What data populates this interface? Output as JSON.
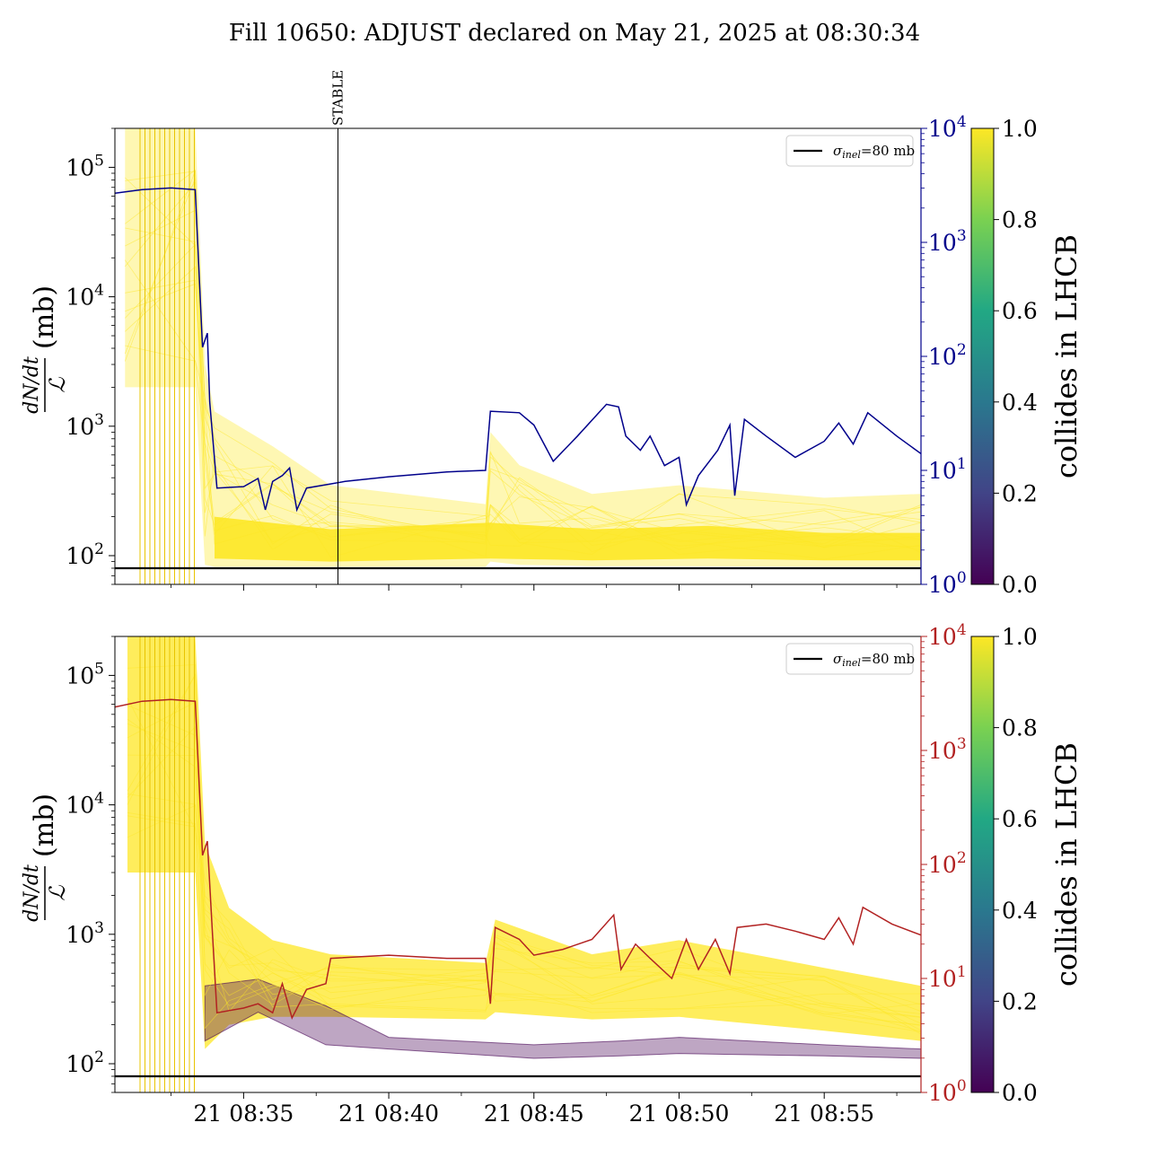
{
  "title": "Fill 10650: ADJUST declared on May 21, 2025 at 08:30:34",
  "colors": {
    "top_right_axis": "#00008b",
    "bottom_right_axis": "#b22222",
    "reference_line": "#000000",
    "high_value_fill": "#fde725",
    "low_value_line": "#440154"
  },
  "chart_data": [
    {
      "type": "line",
      "panel": "top",
      "ylabel": "dN/dt / ℒ (mb)",
      "yscale": "log",
      "ylim": [
        60,
        200000
      ],
      "yticks": [
        {
          "value": 100,
          "label": "10",
          "exp": "2"
        },
        {
          "value": 1000,
          "label": "10",
          "exp": "3"
        },
        {
          "value": 10000,
          "label": "10",
          "exp": "4"
        },
        {
          "value": 100000,
          "label": "10",
          "exp": "5"
        }
      ],
      "xlim": [
        "08:30:34",
        "08:58:20"
      ],
      "xtick_labels_visible": false,
      "marker": {
        "label": "STABLE",
        "x": "08:38:15"
      },
      "legend": {
        "position": "upper-right",
        "entry": "σinel=80 mb",
        "entry_text": "σ",
        "entry_sub": "inel",
        "entry_rest": "=80 mb"
      },
      "reference_line": {
        "value": 80
      },
      "right_axis": {
        "color": "#00008b",
        "scale": "log",
        "ylim": [
          1,
          10000
        ],
        "ticks": [
          {
            "value": 1,
            "label": "10",
            "exp": "0"
          },
          {
            "value": 10,
            "label": "10",
            "exp": "1"
          },
          {
            "value": 100,
            "label": "10",
            "exp": "2"
          },
          {
            "value": 1000,
            "label": "10",
            "exp": "3"
          },
          {
            "value": 10000,
            "label": "10",
            "exp": "4"
          }
        ],
        "series": [
          {
            "x": "08:30:34",
            "y": 2700
          },
          {
            "x": "08:31:30",
            "y": 2900
          },
          {
            "x": "08:32:30",
            "y": 3000
          },
          {
            "x": "08:33:20",
            "y": 2900
          },
          {
            "x": "08:33:35",
            "y": 120
          },
          {
            "x": "08:33:45",
            "y": 160
          },
          {
            "x": "08:33:50",
            "y": 40
          },
          {
            "x": "08:34:05",
            "y": 7
          },
          {
            "x": "08:35:00",
            "y": 7.2
          },
          {
            "x": "08:35:30",
            "y": 8.5
          },
          {
            "x": "08:35:45",
            "y": 4.5
          },
          {
            "x": "08:36:00",
            "y": 8
          },
          {
            "x": "08:36:20",
            "y": 9
          },
          {
            "x": "08:36:35",
            "y": 10.5
          },
          {
            "x": "08:36:50",
            "y": 4.5
          },
          {
            "x": "08:37:10",
            "y": 7
          },
          {
            "x": "08:38:30",
            "y": 8
          },
          {
            "x": "08:40:00",
            "y": 8.8
          },
          {
            "x": "08:42:00",
            "y": 9.7
          },
          {
            "x": "08:43:20",
            "y": 10
          },
          {
            "x": "08:43:30",
            "y": 33
          },
          {
            "x": "08:44:30",
            "y": 32
          },
          {
            "x": "08:45:00",
            "y": 25
          },
          {
            "x": "08:45:40",
            "y": 12
          },
          {
            "x": "08:46:30",
            "y": 20
          },
          {
            "x": "08:47:30",
            "y": 38
          },
          {
            "x": "08:47:55",
            "y": 36
          },
          {
            "x": "08:48:10",
            "y": 20
          },
          {
            "x": "08:48:40",
            "y": 15
          },
          {
            "x": "08:49:00",
            "y": 20
          },
          {
            "x": "08:49:30",
            "y": 11
          },
          {
            "x": "08:50:00",
            "y": 13
          },
          {
            "x": "08:50:15",
            "y": 5
          },
          {
            "x": "08:50:40",
            "y": 9
          },
          {
            "x": "08:51:20",
            "y": 15
          },
          {
            "x": "08:51:45",
            "y": 25
          },
          {
            "x": "08:51:55",
            "y": 6
          },
          {
            "x": "08:52:15",
            "y": 28
          },
          {
            "x": "08:53:00",
            "y": 20
          },
          {
            "x": "08:54:00",
            "y": 13
          },
          {
            "x": "08:55:00",
            "y": 18
          },
          {
            "x": "08:55:30",
            "y": 26
          },
          {
            "x": "08:56:00",
            "y": 17
          },
          {
            "x": "08:56:30",
            "y": 32
          },
          {
            "x": "08:57:30",
            "y": 20
          },
          {
            "x": "08:58:20",
            "y": 14
          }
        ]
      },
      "colorbar": {
        "label": "collides in LHCB",
        "range": [
          0.0,
          1.0
        ],
        "ticks": [
          "0.0",
          "0.2",
          "0.4",
          "0.6",
          "0.8",
          "1.0"
        ]
      },
      "band_series": {
        "description_value": "collides=1.0",
        "envelope": [
          {
            "x": "08:30:55",
            "lo": 2000,
            "hi": 200000
          },
          {
            "x": "08:33:20",
            "lo": 2000,
            "hi": 200000
          },
          {
            "x": "08:33:40",
            "lo": 85,
            "hi": 3000
          },
          {
            "x": "08:34:00",
            "lo": 82,
            "hi": 1300
          },
          {
            "x": "08:36:00",
            "lo": 82,
            "hi": 700
          },
          {
            "x": "08:38:00",
            "lo": 82,
            "hi": 350
          },
          {
            "x": "08:43:20",
            "lo": 82,
            "hi": 250
          },
          {
            "x": "08:43:30",
            "lo": 90,
            "hi": 900
          },
          {
            "x": "08:44:30",
            "lo": 85,
            "hi": 500
          },
          {
            "x": "08:47:00",
            "lo": 83,
            "hi": 300
          },
          {
            "x": "08:50:00",
            "lo": 83,
            "hi": 350
          },
          {
            "x": "08:55:00",
            "lo": 82,
            "hi": 280
          },
          {
            "x": "08:58:20",
            "lo": 82,
            "hi": 300
          }
        ],
        "core": [
          {
            "x": "08:34:00",
            "lo": 95,
            "hi": 200
          },
          {
            "x": "08:38:00",
            "lo": 90,
            "hi": 160
          },
          {
            "x": "08:43:30",
            "lo": 95,
            "hi": 180
          },
          {
            "x": "08:47:00",
            "lo": 92,
            "hi": 160
          },
          {
            "x": "08:51:00",
            "lo": 95,
            "hi": 170
          },
          {
            "x": "08:55:00",
            "lo": 92,
            "hi": 150
          },
          {
            "x": "08:58:20",
            "lo": 92,
            "hi": 150
          }
        ]
      }
    },
    {
      "type": "line",
      "panel": "bottom",
      "ylabel": "dN/dt / ℒ (mb)",
      "yscale": "log",
      "ylim": [
        60,
        200000
      ],
      "yticks": [
        {
          "value": 100,
          "label": "10",
          "exp": "2"
        },
        {
          "value": 1000,
          "label": "10",
          "exp": "3"
        },
        {
          "value": 10000,
          "label": "10",
          "exp": "4"
        },
        {
          "value": 100000,
          "label": "10",
          "exp": "5"
        }
      ],
      "xlim": [
        "08:30:34",
        "08:58:20"
      ],
      "xticks": [
        {
          "value": "08:35:00",
          "label": "21 08:35"
        },
        {
          "value": "08:40:00",
          "label": "21 08:40"
        },
        {
          "value": "08:45:00",
          "label": "21 08:45"
        },
        {
          "value": "08:50:00",
          "label": "21 08:50"
        },
        {
          "value": "08:55:00",
          "label": "21 08:55"
        }
      ],
      "legend": {
        "position": "upper-right",
        "entry": "σinel=80 mb",
        "entry_text": "σ",
        "entry_sub": "inel",
        "entry_rest": "=80 mb"
      },
      "reference_line": {
        "value": 80
      },
      "right_axis": {
        "color": "#b22222",
        "scale": "log",
        "ylim": [
          1,
          10000
        ],
        "ticks": [
          {
            "value": 1,
            "label": "10",
            "exp": "0"
          },
          {
            "value": 10,
            "label": "10",
            "exp": "1"
          },
          {
            "value": 100,
            "label": "10",
            "exp": "2"
          },
          {
            "value": 1000,
            "label": "10",
            "exp": "3"
          },
          {
            "value": 10000,
            "label": "10",
            "exp": "4"
          }
        ],
        "series": [
          {
            "x": "08:30:34",
            "y": 2400
          },
          {
            "x": "08:31:30",
            "y": 2700
          },
          {
            "x": "08:32:30",
            "y": 2800
          },
          {
            "x": "08:33:20",
            "y": 2700
          },
          {
            "x": "08:33:35",
            "y": 120
          },
          {
            "x": "08:33:45",
            "y": 160
          },
          {
            "x": "08:33:55",
            "y": 28
          },
          {
            "x": "08:34:05",
            "y": 5
          },
          {
            "x": "08:35:00",
            "y": 5.5
          },
          {
            "x": "08:35:30",
            "y": 6
          },
          {
            "x": "08:36:00",
            "y": 5
          },
          {
            "x": "08:36:20",
            "y": 9
          },
          {
            "x": "08:36:40",
            "y": 4.5
          },
          {
            "x": "08:37:10",
            "y": 8
          },
          {
            "x": "08:37:50",
            "y": 9
          },
          {
            "x": "08:38:00",
            "y": 15
          },
          {
            "x": "08:40:00",
            "y": 16
          },
          {
            "x": "08:42:00",
            "y": 15
          },
          {
            "x": "08:43:20",
            "y": 15
          },
          {
            "x": "08:43:30",
            "y": 6
          },
          {
            "x": "08:43:40",
            "y": 28
          },
          {
            "x": "08:44:30",
            "y": 22
          },
          {
            "x": "08:45:00",
            "y": 16
          },
          {
            "x": "08:46:00",
            "y": 18
          },
          {
            "x": "08:47:00",
            "y": 22
          },
          {
            "x": "08:47:45",
            "y": 36
          },
          {
            "x": "08:48:00",
            "y": 12
          },
          {
            "x": "08:48:30",
            "y": 20
          },
          {
            "x": "08:49:00",
            "y": 15
          },
          {
            "x": "08:49:45",
            "y": 10
          },
          {
            "x": "08:50:15",
            "y": 22
          },
          {
            "x": "08:50:40",
            "y": 12
          },
          {
            "x": "08:51:15",
            "y": 22
          },
          {
            "x": "08:51:45",
            "y": 11
          },
          {
            "x": "08:52:00",
            "y": 28
          },
          {
            "x": "08:53:00",
            "y": 30
          },
          {
            "x": "08:54:00",
            "y": 26
          },
          {
            "x": "08:55:00",
            "y": 22
          },
          {
            "x": "08:55:30",
            "y": 34
          },
          {
            "x": "08:56:00",
            "y": 20
          },
          {
            "x": "08:56:20",
            "y": 42
          },
          {
            "x": "08:57:20",
            "y": 30
          },
          {
            "x": "08:58:20",
            "y": 24
          }
        ]
      },
      "colorbar": {
        "label": "collides in LHCB",
        "range": [
          0.0,
          1.0
        ],
        "ticks": [
          "0.0",
          "0.2",
          "0.4",
          "0.6",
          "0.8",
          "1.0"
        ]
      },
      "band_series": {
        "description_value": "collides=1.0",
        "envelope": [
          {
            "x": "08:31:00",
            "lo": 3000,
            "hi": 200000
          },
          {
            "x": "08:33:20",
            "lo": 3000,
            "hi": 200000
          },
          {
            "x": "08:33:40",
            "lo": 130,
            "hi": 5000
          },
          {
            "x": "08:34:30",
            "lo": 200,
            "hi": 1600
          },
          {
            "x": "08:36:00",
            "lo": 230,
            "hi": 900
          },
          {
            "x": "08:38:00",
            "lo": 230,
            "hi": 700
          },
          {
            "x": "08:43:20",
            "lo": 220,
            "hi": 600
          },
          {
            "x": "08:43:40",
            "lo": 250,
            "hi": 1300
          },
          {
            "x": "08:47:00",
            "lo": 220,
            "hi": 700
          },
          {
            "x": "08:50:00",
            "lo": 230,
            "hi": 900
          },
          {
            "x": "08:55:00",
            "lo": 180,
            "hi": 550
          },
          {
            "x": "08:58:20",
            "lo": 150,
            "hi": 400
          }
        ],
        "low_band": [
          {
            "x": "08:33:40",
            "lo": 150,
            "hi": 400
          },
          {
            "x": "08:35:30",
            "lo": 250,
            "hi": 450
          },
          {
            "x": "08:37:50",
            "lo": 140,
            "hi": 280
          },
          {
            "x": "08:40:00",
            "lo": 130,
            "hi": 160
          },
          {
            "x": "08:45:00",
            "lo": 110,
            "hi": 140
          },
          {
            "x": "08:48:00",
            "lo": 115,
            "hi": 150
          },
          {
            "x": "08:50:00",
            "lo": 120,
            "hi": 160
          },
          {
            "x": "08:55:00",
            "lo": 115,
            "hi": 140
          },
          {
            "x": "08:58:20",
            "lo": 110,
            "hi": 130
          }
        ]
      }
    }
  ]
}
